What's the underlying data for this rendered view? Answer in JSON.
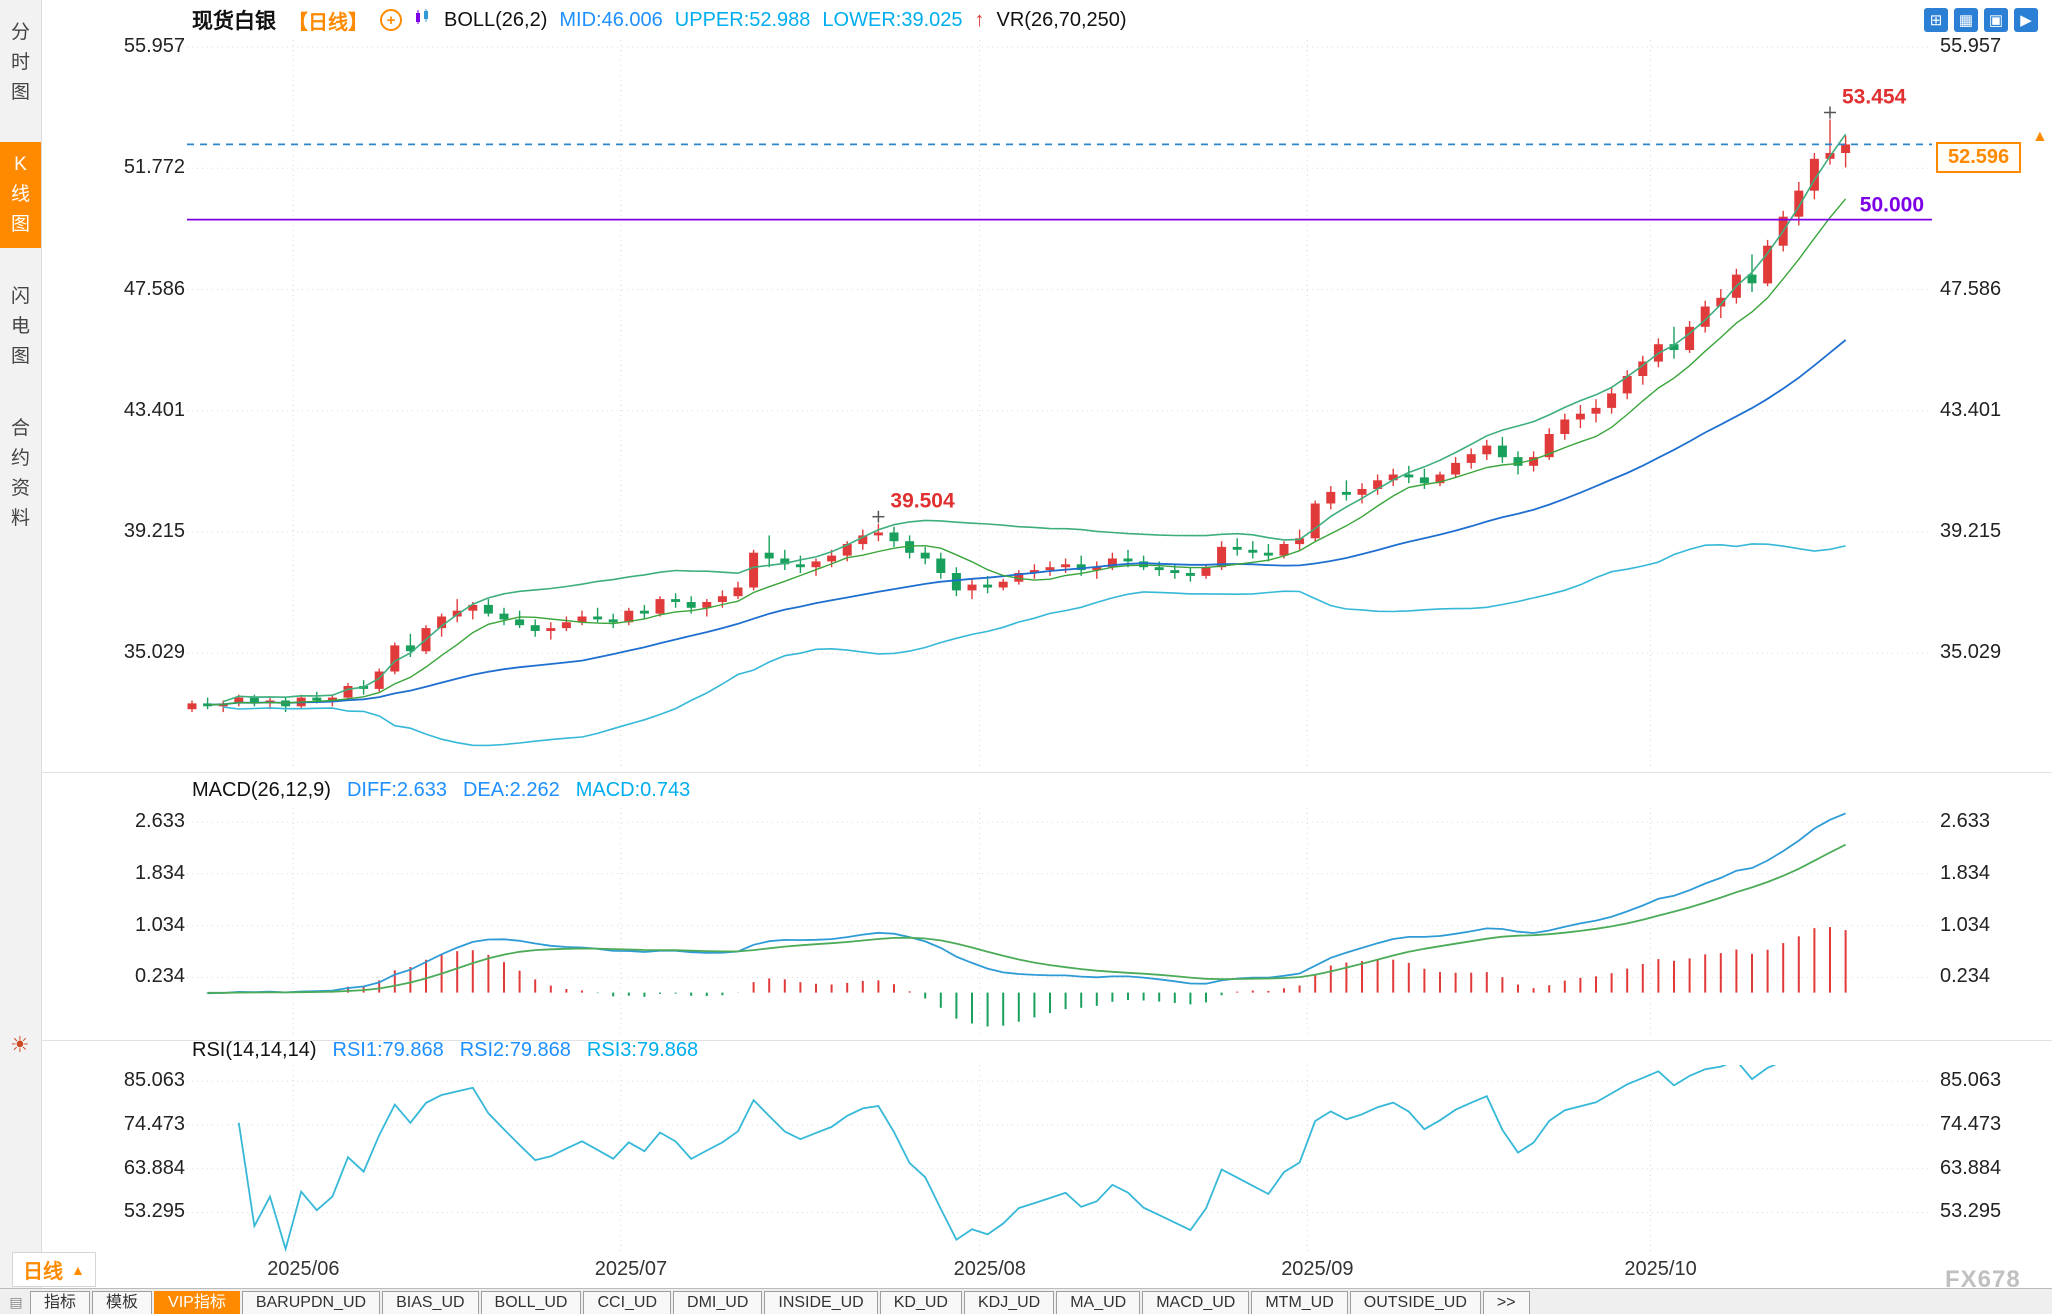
{
  "sidebar": {
    "items": [
      {
        "label": "分\n时\n图",
        "active": false
      },
      {
        "label": "K\n线\n图",
        "active": true
      },
      {
        "label": "闪\n电\n图",
        "active": false
      },
      {
        "label": "合\n约\n资\n料",
        "active": false
      }
    ]
  },
  "header": {
    "title": "现货白银",
    "period_tag": "【日线】",
    "boll_label": "BOLL(26,2)",
    "mid_label": "MID:46.006",
    "upper_label": "UPPER:52.988",
    "lower_label": "LOWER:39.025",
    "vr_arrow": "↑",
    "vr_label": "VR(26,70,250)",
    "icons": [
      "grid-layout-icon",
      "multi-panel-icon",
      "single-chart-icon",
      "forward-icon"
    ]
  },
  "macd_header": {
    "label": "MACD(26,12,9)",
    "diff": "DIFF:2.633",
    "dea": "DEA:2.262",
    "macd": "MACD:0.743"
  },
  "rsi_header": {
    "label": "RSI(14,14,14)",
    "rsi1": "RSI1:79.868",
    "rsi2": "RSI2:79.868",
    "rsi3": "RSI3:79.868"
  },
  "bottom": {
    "period_label": "日线",
    "period_arrow": "▲",
    "tabs": [
      "指标",
      "模板",
      "VIP指标",
      "BARUPDN_UD",
      "BIAS_UD",
      "BOLL_UD",
      "CCI_UD",
      "DMI_UD",
      "INSIDE_UD",
      "KD_UD",
      "KDJ_UD",
      "MA_UD",
      "MACD_UD",
      "MTM_UD",
      "OUTSIDE_UD",
      ">>"
    ],
    "active_tab": "VIP指标"
  },
  "watermark": "FX678",
  "colors": {
    "up": "#e03a3a",
    "down": "#18a05c",
    "mid": "#1e6fd0",
    "upper": "#3dae7c",
    "lower": "#36b8d8",
    "ma_short": "#3aa53a",
    "diff": "#2e9bd6",
    "dea": "#4cab58",
    "hist_pos": "#e03a3a",
    "hist_neg": "#18a05c",
    "rsi": "#36b8d8",
    "grid": "#d9d9d9",
    "purple": "#7d00e6",
    "dashed_line": "#2e86c8",
    "annotation": "#e03030",
    "accent": "#ff8a00"
  },
  "chart_data": {
    "type": "candlestick",
    "title": "现货白银 日线",
    "x_label_prefix": "2025/",
    "x_labels": [
      "2025/06",
      "2025/07",
      "2025/08",
      "2025/09",
      "2025/10"
    ],
    "price_axis": {
      "ticks": [
        "55.957",
        "51.772",
        "47.586",
        "43.401",
        "39.215",
        "35.029"
      ],
      "min": 31.0,
      "max": 56.2
    },
    "macd_axis": {
      "ticks": [
        "2.633",
        "1.834",
        "1.034",
        "0.234"
      ],
      "min": -0.7,
      "max": 2.85
    },
    "rsi_axis": {
      "ticks": [
        "85.063",
        "74.473",
        "63.884",
        "53.295"
      ],
      "min": 43,
      "max": 89
    },
    "price_lines": [
      {
        "value": 50.0,
        "label": "50.000",
        "color": "#7d00e6",
        "style": "solid"
      },
      {
        "value": 52.596,
        "label": "",
        "color": "#2e86c8",
        "style": "dashed"
      }
    ],
    "last_price": {
      "value": 52.596,
      "label": "52.596"
    },
    "annotations": [
      {
        "date": "07-23",
        "value": 39.504,
        "label": "39.504"
      },
      {
        "date": "10-16",
        "value": 53.454,
        "label": "53.454"
      }
    ],
    "indicators": {
      "boll": {
        "n": 26,
        "k": 2
      },
      "ma_short": 7,
      "macd": [
        26,
        12,
        9
      ],
      "rsi": [
        14,
        14,
        14
      ]
    },
    "candles": [
      [
        "05-22",
        33.1,
        33.4,
        33.0,
        33.3
      ],
      [
        "05-23",
        33.3,
        33.5,
        33.1,
        33.2
      ],
      [
        "05-26",
        33.2,
        33.4,
        33.0,
        33.3
      ],
      [
        "05-27",
        33.3,
        33.6,
        33.2,
        33.5
      ],
      [
        "05-28",
        33.5,
        33.6,
        33.2,
        33.3
      ],
      [
        "05-29",
        33.3,
        33.5,
        33.1,
        33.4
      ],
      [
        "05-30",
        33.4,
        33.5,
        33.0,
        33.2
      ],
      [
        "06-02",
        33.2,
        33.6,
        33.1,
        33.5
      ],
      [
        "06-03",
        33.5,
        33.7,
        33.3,
        33.4
      ],
      [
        "06-04",
        33.4,
        33.6,
        33.2,
        33.5
      ],
      [
        "06-05",
        33.5,
        34.0,
        33.4,
        33.9
      ],
      [
        "06-06",
        33.9,
        34.1,
        33.6,
        33.8
      ],
      [
        "06-09",
        33.8,
        34.5,
        33.7,
        34.4
      ],
      [
        "06-10",
        34.4,
        35.4,
        34.3,
        35.3
      ],
      [
        "06-11",
        35.3,
        35.7,
        34.9,
        35.1
      ],
      [
        "06-12",
        35.1,
        36.0,
        35.0,
        35.9
      ],
      [
        "06-13",
        35.9,
        36.4,
        35.6,
        36.3
      ],
      [
        "06-16",
        36.3,
        36.9,
        36.1,
        36.5
      ],
      [
        "06-17",
        36.5,
        36.8,
        36.2,
        36.7
      ],
      [
        "06-18",
        36.7,
        36.9,
        36.3,
        36.4
      ],
      [
        "06-19",
        36.4,
        36.6,
        36.0,
        36.2
      ],
      [
        "06-20",
        36.2,
        36.5,
        35.9,
        36.0
      ],
      [
        "06-23",
        36.0,
        36.2,
        35.6,
        35.8
      ],
      [
        "06-24",
        35.8,
        36.1,
        35.5,
        35.9
      ],
      [
        "06-25",
        35.9,
        36.3,
        35.8,
        36.1
      ],
      [
        "06-26",
        36.1,
        36.5,
        36.0,
        36.3
      ],
      [
        "06-27",
        36.3,
        36.6,
        36.1,
        36.2
      ],
      [
        "06-30",
        36.2,
        36.4,
        35.9,
        36.1
      ],
      [
        "07-01",
        36.1,
        36.6,
        36.0,
        36.5
      ],
      [
        "07-02",
        36.5,
        36.7,
        36.2,
        36.4
      ],
      [
        "07-03",
        36.4,
        37.0,
        36.3,
        36.9
      ],
      [
        "07-04",
        36.9,
        37.1,
        36.6,
        36.8
      ],
      [
        "07-07",
        36.8,
        37.0,
        36.4,
        36.6
      ],
      [
        "07-08",
        36.6,
        36.9,
        36.3,
        36.8
      ],
      [
        "07-09",
        36.8,
        37.2,
        36.6,
        37.0
      ],
      [
        "07-10",
        37.0,
        37.5,
        36.9,
        37.3
      ],
      [
        "07-11",
        37.3,
        38.6,
        37.2,
        38.5
      ],
      [
        "07-14",
        38.5,
        39.1,
        38.0,
        38.3
      ],
      [
        "07-15",
        38.3,
        38.6,
        37.9,
        38.1
      ],
      [
        "07-16",
        38.1,
        38.4,
        37.8,
        38.0
      ],
      [
        "07-17",
        38.0,
        38.3,
        37.7,
        38.2
      ],
      [
        "07-18",
        38.2,
        38.6,
        38.0,
        38.4
      ],
      [
        "07-21",
        38.4,
        38.9,
        38.2,
        38.8
      ],
      [
        "07-22",
        38.8,
        39.3,
        38.6,
        39.1
      ],
      [
        "07-23",
        39.1,
        39.504,
        38.9,
        39.2
      ],
      [
        "07-24",
        39.2,
        39.4,
        38.7,
        38.9
      ],
      [
        "07-25",
        38.9,
        39.1,
        38.3,
        38.5
      ],
      [
        "07-28",
        38.5,
        38.7,
        38.1,
        38.3
      ],
      [
        "07-29",
        38.3,
        38.5,
        37.6,
        37.8
      ],
      [
        "07-30",
        37.8,
        38.0,
        37.0,
        37.2
      ],
      [
        "07-31",
        37.2,
        37.6,
        36.9,
        37.4
      ],
      [
        "08-01",
        37.4,
        37.7,
        37.1,
        37.3
      ],
      [
        "08-04",
        37.3,
        37.6,
        37.2,
        37.5
      ],
      [
        "08-05",
        37.5,
        37.9,
        37.4,
        37.8
      ],
      [
        "08-06",
        37.8,
        38.1,
        37.6,
        37.9
      ],
      [
        "08-07",
        37.9,
        38.2,
        37.7,
        38.0
      ],
      [
        "08-08",
        38.0,
        38.3,
        37.8,
        38.1
      ],
      [
        "08-11",
        38.1,
        38.4,
        37.7,
        37.9
      ],
      [
        "08-12",
        37.9,
        38.2,
        37.6,
        38.0
      ],
      [
        "08-13",
        38.0,
        38.5,
        37.9,
        38.3
      ],
      [
        "08-14",
        38.3,
        38.6,
        38.0,
        38.2
      ],
      [
        "08-15",
        38.2,
        38.4,
        37.9,
        38.0
      ],
      [
        "08-18",
        38.0,
        38.2,
        37.7,
        37.9
      ],
      [
        "08-19",
        37.9,
        38.1,
        37.6,
        37.8
      ],
      [
        "08-20",
        37.8,
        38.0,
        37.5,
        37.7
      ],
      [
        "08-21",
        37.7,
        38.1,
        37.6,
        38.0
      ],
      [
        "08-22",
        38.0,
        38.9,
        37.9,
        38.7
      ],
      [
        "08-25",
        38.7,
        39.0,
        38.4,
        38.6
      ],
      [
        "08-26",
        38.6,
        38.9,
        38.3,
        38.5
      ],
      [
        "08-27",
        38.5,
        38.8,
        38.2,
        38.4
      ],
      [
        "08-28",
        38.4,
        38.9,
        38.3,
        38.8
      ],
      [
        "08-29",
        38.8,
        39.3,
        38.6,
        39.0
      ],
      [
        "09-01",
        39.0,
        40.3,
        38.9,
        40.2
      ],
      [
        "09-02",
        40.2,
        40.8,
        40.0,
        40.6
      ],
      [
        "09-03",
        40.6,
        41.0,
        40.3,
        40.5
      ],
      [
        "09-04",
        40.5,
        40.9,
        40.2,
        40.7
      ],
      [
        "09-05",
        40.7,
        41.2,
        40.5,
        41.0
      ],
      [
        "09-08",
        41.0,
        41.4,
        40.8,
        41.2
      ],
      [
        "09-09",
        41.2,
        41.5,
        40.9,
        41.1
      ],
      [
        "09-10",
        41.1,
        41.4,
        40.7,
        40.9
      ],
      [
        "09-11",
        40.9,
        41.3,
        40.8,
        41.2
      ],
      [
        "09-12",
        41.2,
        41.8,
        41.1,
        41.6
      ],
      [
        "09-15",
        41.6,
        42.1,
        41.4,
        41.9
      ],
      [
        "09-16",
        41.9,
        42.4,
        41.7,
        42.2
      ],
      [
        "09-17",
        42.2,
        42.5,
        41.6,
        41.8
      ],
      [
        "09-18",
        41.8,
        42.0,
        41.2,
        41.5
      ],
      [
        "09-19",
        41.5,
        42.0,
        41.3,
        41.8
      ],
      [
        "09-22",
        41.8,
        42.8,
        41.7,
        42.6
      ],
      [
        "09-23",
        42.6,
        43.3,
        42.4,
        43.1
      ],
      [
        "09-24",
        43.1,
        43.6,
        42.8,
        43.3
      ],
      [
        "09-25",
        43.3,
        43.8,
        43.0,
        43.5
      ],
      [
        "09-26",
        43.5,
        44.2,
        43.3,
        44.0
      ],
      [
        "09-29",
        44.0,
        44.8,
        43.8,
        44.6
      ],
      [
        "09-30",
        44.6,
        45.3,
        44.3,
        45.1
      ],
      [
        "10-01",
        45.1,
        45.9,
        44.9,
        45.7
      ],
      [
        "10-02",
        45.7,
        46.3,
        45.2,
        45.5
      ],
      [
        "10-03",
        45.5,
        46.5,
        45.4,
        46.3
      ],
      [
        "10-06",
        46.3,
        47.2,
        46.1,
        47.0
      ],
      [
        "10-07",
        47.0,
        47.6,
        46.6,
        47.3
      ],
      [
        "10-08",
        47.3,
        48.3,
        47.1,
        48.1
      ],
      [
        "10-09",
        48.1,
        48.8,
        47.5,
        47.8
      ],
      [
        "10-10",
        47.8,
        49.3,
        47.7,
        49.1
      ],
      [
        "10-13",
        49.1,
        50.3,
        48.9,
        50.1
      ],
      [
        "10-14",
        50.1,
        51.3,
        49.8,
        51.0
      ],
      [
        "10-15",
        51.0,
        52.3,
        50.7,
        52.1
      ],
      [
        "10-16",
        52.1,
        53.454,
        51.9,
        52.3
      ],
      [
        "10-17",
        52.3,
        52.9,
        51.8,
        52.596
      ]
    ]
  }
}
